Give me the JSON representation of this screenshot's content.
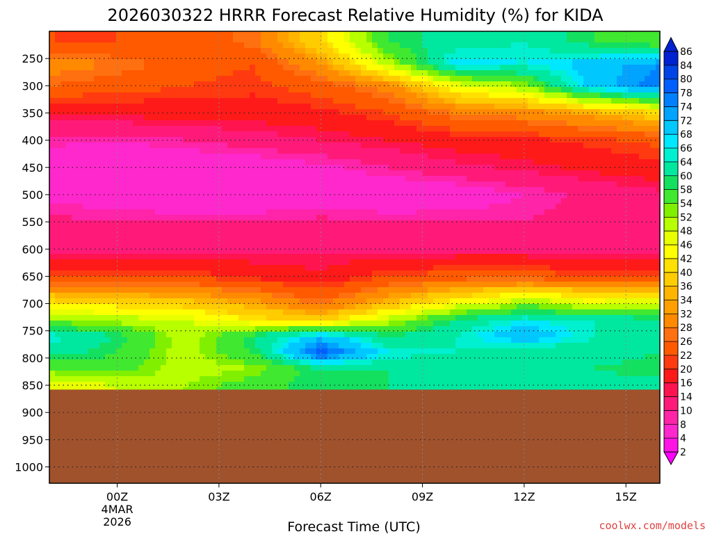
{
  "chart_data": {
    "type": "heatmap",
    "title": "2026030322 HRRR Forecast Relative Humidity (%) for KIDA",
    "xlabel": "Forecast Time (UTC)",
    "ylabel": "",
    "x_ticks": [
      {
        "label": "00Z",
        "hour": 2,
        "sub": [
          "4MAR",
          "2026"
        ]
      },
      {
        "label": "03Z",
        "hour": 5,
        "sub": []
      },
      {
        "label": "06Z",
        "hour": 8,
        "sub": []
      },
      {
        "label": "09Z",
        "hour": 11,
        "sub": []
      },
      {
        "label": "12Z",
        "hour": 14,
        "sub": []
      },
      {
        "label": "15Z",
        "hour": 17,
        "sub": []
      }
    ],
    "xlim_hours": [
      0,
      18
    ],
    "y_ticks": [
      250,
      300,
      350,
      400,
      450,
      500,
      550,
      600,
      650,
      700,
      750,
      800,
      850,
      900,
      950,
      1000
    ],
    "ylim_hpa": [
      200,
      1030
    ],
    "grid": true,
    "scale_levels": [
      2,
      4,
      8,
      10,
      14,
      16,
      20,
      22,
      26,
      28,
      32,
      34,
      36,
      40,
      42,
      46,
      48,
      52,
      54,
      58,
      60,
      64,
      66,
      68,
      72,
      74,
      78,
      80,
      84,
      86
    ],
    "scale_colors": [
      "#ff00ff",
      "#ff14e6",
      "#ff28cc",
      "#ff24a8",
      "#ff1a7a",
      "#ff1450",
      "#ff1a1a",
      "#ff3a10",
      "#ff5a00",
      "#ff7010",
      "#ff8a00",
      "#ffa000",
      "#ffb400",
      "#ffcc00",
      "#ffe000",
      "#ffff00",
      "#e8ff00",
      "#b8ff00",
      "#80f000",
      "#40e830",
      "#14e060",
      "#00e8a0",
      "#00f0d0",
      "#00e8ff",
      "#00c8ff",
      "#00a4ff",
      "#0080ff",
      "#0060ff",
      "#0044e8",
      "#0022d0"
    ],
    "terrain_color": "#a0522d",
    "surface_pressure_hpa": 858,
    "rh_profile_hpa": [
      220,
      260,
      300,
      350,
      400,
      450,
      500,
      550,
      600,
      650,
      700,
      730,
      760,
      790,
      820,
      850
    ],
    "rh_profile_hours": [
      0,
      2,
      4,
      6,
      8,
      10,
      12,
      14,
      16,
      18
    ],
    "rh_values": [
      [
        22,
        22,
        24,
        27,
        40,
        58,
        62,
        64,
        58,
        55
      ],
      [
        30,
        28,
        24,
        22,
        32,
        50,
        68,
        66,
        70,
        74
      ],
      [
        26,
        24,
        22,
        21,
        24,
        30,
        46,
        52,
        70,
        76
      ],
      [
        16,
        17,
        18,
        18,
        19,
        22,
        28,
        30,
        34,
        40
      ],
      [
        9,
        8,
        10,
        12,
        14,
        16,
        18,
        19,
        21,
        23
      ],
      [
        5,
        4,
        4,
        5,
        7,
        10,
        13,
        15,
        17,
        19
      ],
      [
        7,
        5,
        4,
        4,
        5,
        4,
        5,
        8,
        11,
        13
      ],
      [
        11,
        10,
        10,
        10,
        11,
        10,
        10,
        10,
        12,
        13
      ],
      [
        13,
        12,
        13,
        13,
        13,
        13,
        13,
        13,
        13,
        13
      ],
      [
        22,
        22,
        22,
        19,
        17,
        22,
        24,
        24,
        22,
        22
      ],
      [
        42,
        40,
        38,
        34,
        27,
        36,
        45,
        52,
        48,
        50
      ],
      [
        52,
        50,
        48,
        42,
        38,
        50,
        60,
        66,
        64,
        60
      ],
      [
        66,
        60,
        50,
        60,
        70,
        60,
        64,
        72,
        64,
        60
      ],
      [
        62,
        58,
        50,
        58,
        80,
        66,
        64,
        60,
        62,
        60
      ],
      [
        54,
        56,
        50,
        52,
        60,
        60,
        60,
        60,
        60,
        58
      ],
      [
        46,
        48,
        52,
        56,
        60,
        60,
        62,
        62,
        62,
        62
      ]
    ]
  },
  "credit": "coolwx.com/models"
}
